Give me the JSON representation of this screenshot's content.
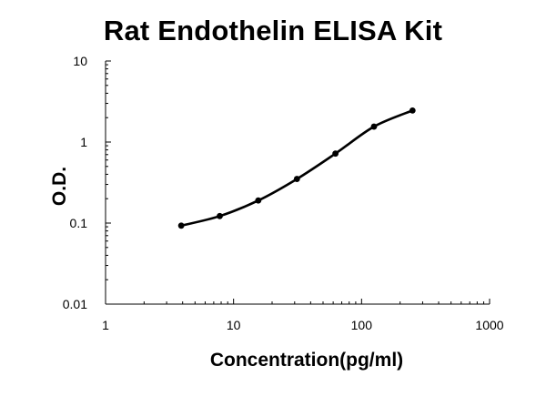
{
  "chart_data": {
    "type": "line",
    "title": "Rat Endothelin ELISA Kit",
    "xlabel": "Concentration(pg/ml)",
    "ylabel": "O.D.",
    "x_scale": "log",
    "y_scale": "log",
    "xlim": [
      1,
      1000
    ],
    "ylim": [
      0.01,
      10
    ],
    "x_ticks": [
      "1",
      "10",
      "100",
      "1000"
    ],
    "y_ticks": [
      "0.01",
      "0.1",
      "1",
      "10"
    ],
    "grid": false,
    "legend": "none",
    "series": [
      {
        "x": [
          3.9,
          7.8,
          15.6,
          31.25,
          62.5,
          125,
          250
        ],
        "y": [
          0.093,
          0.122,
          0.19,
          0.35,
          0.72,
          1.55,
          2.45
        ]
      }
    ],
    "colors": {
      "line": "#000000",
      "marker": "#000000",
      "axis": "#000000"
    }
  }
}
